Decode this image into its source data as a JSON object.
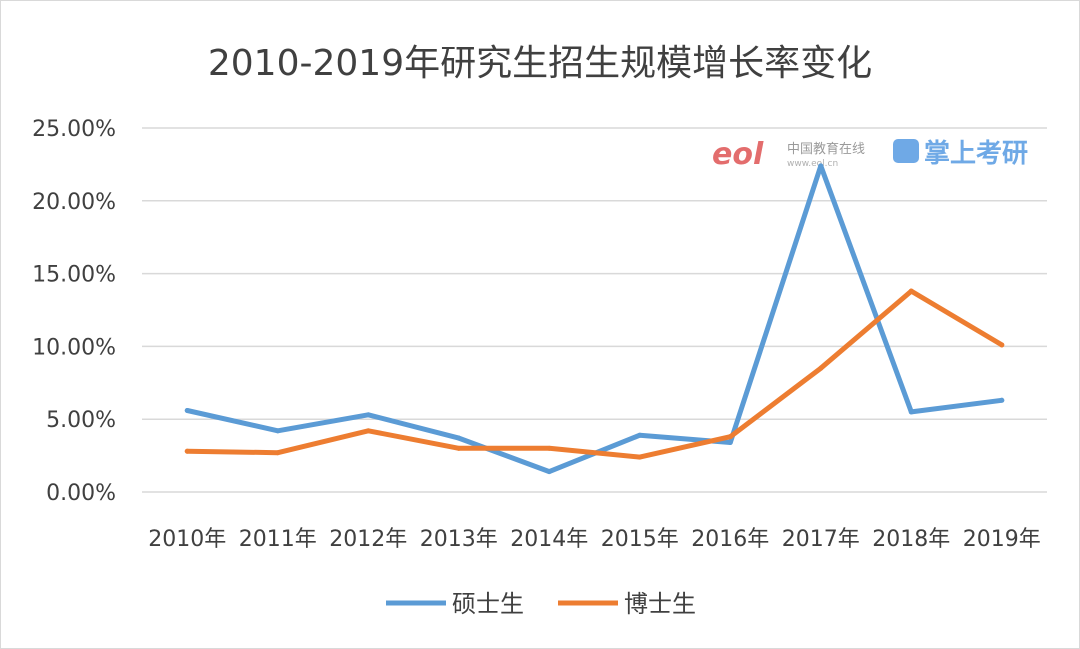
{
  "chart_data": {
    "type": "line",
    "title": "2010-2019年研究生招生规模增长率变化",
    "categories": [
      "2010年",
      "2011年",
      "2012年",
      "2013年",
      "2014年",
      "2015年",
      "2016年",
      "2017年",
      "2018年",
      "2019年"
    ],
    "ylim": [
      0,
      25
    ],
    "yticks": [
      "0.00%",
      "5.00%",
      "10.00%",
      "15.00%",
      "20.00%",
      "25.00%"
    ],
    "grid": true,
    "legend": "bottom",
    "series": [
      {
        "name": "硕士生",
        "color": "#5b9bd5",
        "values": [
          5.6,
          4.2,
          5.3,
          3.7,
          1.4,
          3.9,
          3.4,
          22.4,
          5.5,
          6.3
        ]
      },
      {
        "name": "博士生",
        "color": "#ed7d31",
        "values": [
          2.8,
          2.7,
          4.2,
          3.0,
          3.0,
          2.4,
          3.8,
          8.5,
          13.8,
          10.1
        ]
      }
    ]
  },
  "watermark": {
    "logo_text": "eol",
    "site_cn": "中国教育在线",
    "site_url": "www.eol.cn",
    "brand": "掌上考研"
  }
}
